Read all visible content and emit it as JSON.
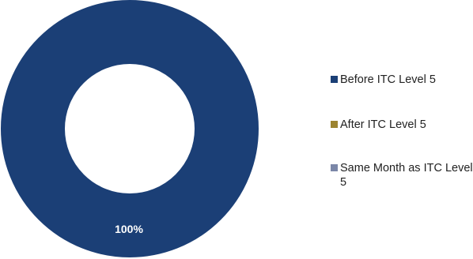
{
  "chart_data": {
    "type": "pie",
    "donut": true,
    "slices": [
      {
        "name": "Before ITC Level 5",
        "value": 100,
        "color": "#1b3f76"
      },
      {
        "name": "After ITC Level 5",
        "value": 0,
        "color": "#9c8431"
      },
      {
        "name": "Same Month as ITC Level 5",
        "value": 0,
        "color": "#7b87a8"
      }
    ],
    "data_labels": [
      "100%"
    ],
    "legend_position": "right"
  }
}
